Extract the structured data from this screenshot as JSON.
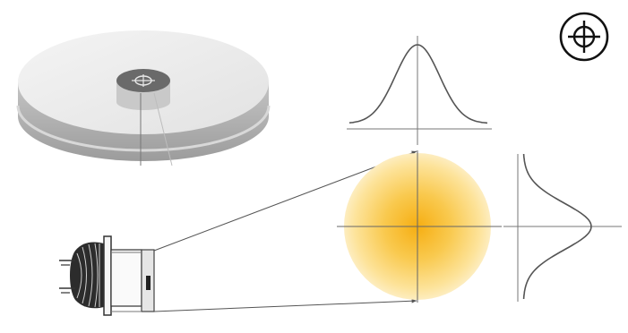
{
  "diagram": {
    "type": "optical-beam-profile",
    "elements": [
      "disc-target",
      "led-emitter",
      "beam-lines",
      "light-spot",
      "horizontal-gaussian-profile",
      "vertical-gaussian-profile",
      "crosshair-badge"
    ],
    "icons": {
      "badge": "crosshair-target-icon",
      "disc_center": "crosshair-target-icon"
    },
    "colors": {
      "spot_center": "#f7b21c",
      "spot_edge": "#fde8a5",
      "line": "#555555",
      "disc_top": "#ececec",
      "disc_side": "#b4b4b4",
      "hub": "#6a6a6a"
    }
  }
}
